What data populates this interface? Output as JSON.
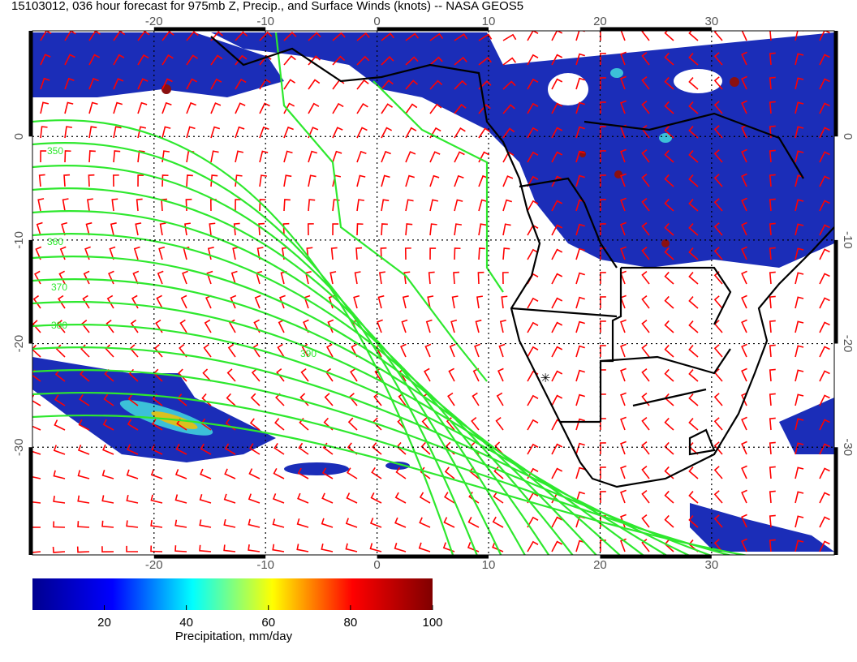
{
  "title": "15103012, 036 hour forecast for 975mb Z, Precip., and Surface Winds (knots) -- NASA GEOS5",
  "map": {
    "lon_range": [
      -30.9,
      41
    ],
    "lat_range": [
      -40.4,
      10.2
    ],
    "lon_ticks": [
      -20,
      -10,
      0,
      10,
      20,
      30
    ],
    "lat_ticks": [
      0,
      -10,
      -20,
      -30
    ],
    "contour_levels": [
      350,
      360,
      370,
      380,
      390
    ]
  },
  "colorbar": {
    "label": "Precipitation, mm/day",
    "range": [
      2.5,
      100
    ],
    "ticks": [
      20,
      40,
      60,
      80,
      100
    ],
    "colors": [
      "#00008f",
      "#0000ff",
      "#00ffff",
      "#ffff00",
      "#ff0000",
      "#800000"
    ]
  }
}
